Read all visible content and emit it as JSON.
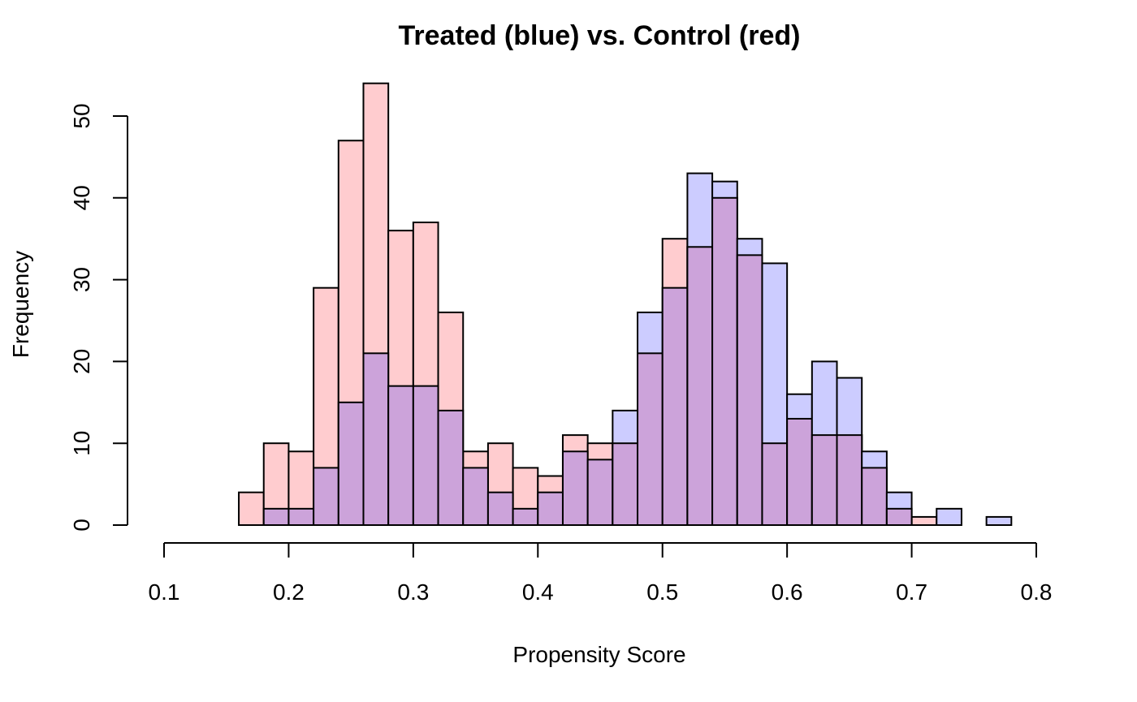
{
  "chart_data": {
    "type": "bar",
    "title": "Treated (blue) vs. Control (red)",
    "xlabel": "Propensity Score",
    "ylabel": "Frequency",
    "xlim": [
      0.1,
      0.8
    ],
    "ylim": [
      0,
      50
    ],
    "x_ticks": [
      "0.1",
      "0.2",
      "0.3",
      "0.4",
      "0.5",
      "0.6",
      "0.7",
      "0.8"
    ],
    "x_tick_values": [
      0.1,
      0.2,
      0.3,
      0.4,
      0.5,
      0.6,
      0.7,
      0.8
    ],
    "y_ticks": [
      "0",
      "10",
      "20",
      "30",
      "40",
      "50"
    ],
    "y_tick_values": [
      0,
      10,
      20,
      30,
      40,
      50
    ],
    "bin_edges": [
      0.16,
      0.18,
      0.2,
      0.22,
      0.24,
      0.26,
      0.28,
      0.3,
      0.32,
      0.34,
      0.36,
      0.38,
      0.4,
      0.42,
      0.44,
      0.46,
      0.48,
      0.5,
      0.52,
      0.54,
      0.56,
      0.58,
      0.6,
      0.62,
      0.64,
      0.66,
      0.68,
      0.7,
      0.72,
      0.74,
      0.76,
      0.78
    ],
    "series": [
      {
        "color": "#FFCCCF",
        "values": [
          4,
          10,
          9,
          29,
          47,
          54,
          36,
          37,
          26,
          9,
          10,
          7,
          6,
          11,
          10,
          10,
          21,
          35,
          34,
          40,
          33,
          10,
          13,
          11,
          11,
          7,
          2,
          1,
          0,
          0,
          0
        ]
      },
      {
        "color": "#CCCCFF",
        "values": [
          0,
          2,
          2,
          7,
          15,
          21,
          17,
          17,
          14,
          7,
          4,
          2,
          4,
          9,
          8,
          14,
          26,
          29,
          43,
          42,
          35,
          32,
          16,
          20,
          18,
          9,
          4,
          0,
          2,
          0,
          1
        ]
      }
    ],
    "overlap_color": "#CCA3DA",
    "grid": false,
    "legend": "none"
  }
}
